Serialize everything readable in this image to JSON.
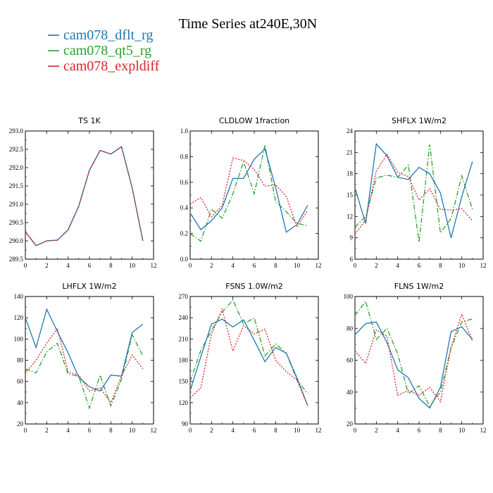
{
  "title": "Time Series at240E,30N",
  "legend": [
    {
      "label": "cam078_dflt_rg",
      "color": "#1f77b4",
      "dash": "solid"
    },
    {
      "label": "cam078_qt5_rg",
      "color": "#2ca02c",
      "dash": "dashdot"
    },
    {
      "label": "cam078_expldiff",
      "color": "#d62728",
      "dash": "dotted"
    }
  ],
  "chart_data": [
    {
      "type": "line",
      "title": "TS   1K",
      "xlim": [
        0,
        12
      ],
      "xticks": [
        0,
        2,
        4,
        6,
        8,
        10,
        12
      ],
      "ylim": [
        289.5,
        293.0
      ],
      "yticks": [
        "289.5",
        "290.0",
        "290.5",
        "291.0",
        "291.5",
        "292.0",
        "292.5",
        "293.0"
      ],
      "x": [
        0,
        1,
        2,
        3,
        4,
        5,
        6,
        7,
        8,
        9,
        10,
        11
      ],
      "series": [
        {
          "name": "cam078_dflt_rg",
          "values": [
            290.25,
            289.87,
            290.0,
            290.02,
            290.3,
            290.95,
            291.93,
            292.47,
            292.37,
            292.57,
            291.45,
            290.0
          ]
        },
        {
          "name": "cam078_qt5_rg",
          "values": [
            290.25,
            289.87,
            290.0,
            290.02,
            290.3,
            290.95,
            291.93,
            292.47,
            292.37,
            292.57,
            291.45,
            290.0
          ]
        },
        {
          "name": "cam078_expldiff",
          "values": [
            290.25,
            289.87,
            290.0,
            290.02,
            290.3,
            290.95,
            291.93,
            292.47,
            292.37,
            292.57,
            291.45,
            290.0
          ]
        }
      ]
    },
    {
      "type": "line",
      "title": "CLDLOW   1fraction",
      "xlim": [
        0,
        12
      ],
      "xticks": [
        0,
        2,
        4,
        6,
        8,
        10,
        12
      ],
      "ylim": [
        0.0,
        1.0
      ],
      "yticks": [
        "0.0",
        "0.2",
        "0.4",
        "0.6",
        "0.8",
        "1.0"
      ],
      "x": [
        0,
        1,
        2,
        3,
        4,
        5,
        6,
        7,
        8,
        9,
        10,
        11
      ],
      "series": [
        {
          "name": "cam078_dflt_rg",
          "values": [
            0.36,
            0.23,
            0.3,
            0.4,
            0.63,
            0.63,
            0.78,
            0.86,
            0.56,
            0.21,
            0.27,
            0.42
          ]
        },
        {
          "name": "cam078_qt5_rg",
          "values": [
            0.2,
            0.14,
            0.39,
            0.32,
            0.51,
            0.76,
            0.51,
            0.89,
            0.45,
            0.37,
            0.28,
            0.26
          ]
        },
        {
          "name": "cam078_expldiff",
          "values": [
            0.43,
            0.48,
            0.33,
            0.42,
            0.79,
            0.77,
            0.7,
            0.57,
            0.58,
            0.49,
            0.25,
            0.38
          ]
        }
      ]
    },
    {
      "type": "line",
      "title": "SHFLX   1W/m2",
      "xlim": [
        0,
        12
      ],
      "xticks": [
        0,
        2,
        4,
        6,
        8,
        10,
        12
      ],
      "ylim": [
        6,
        24
      ],
      "yticks": [
        "6",
        "9",
        "12",
        "15",
        "18",
        "21",
        "24"
      ],
      "x": [
        0,
        1,
        2,
        3,
        4,
        5,
        6,
        7,
        8,
        9,
        10,
        11
      ],
      "series": [
        {
          "name": "cam078_dflt_rg",
          "values": [
            16.0,
            11.0,
            22.2,
            20.5,
            17.5,
            17.2,
            18.9,
            18.0,
            15.3,
            9.0,
            14.8,
            19.7
          ]
        },
        {
          "name": "cam078_qt5_rg",
          "values": [
            10.5,
            12.0,
            17.4,
            17.8,
            17.5,
            19.2,
            8.4,
            22.1,
            9.7,
            11.7,
            17.7,
            13.0
          ]
        },
        {
          "name": "cam078_expldiff",
          "values": [
            9.5,
            11.5,
            18.4,
            20.7,
            18.2,
            17.6,
            14.3,
            15.9,
            13.0,
            12.9,
            13.1,
            11.4
          ]
        }
      ]
    },
    {
      "type": "line",
      "title": "LHFLX   1W/m2",
      "xlim": [
        0,
        12
      ],
      "xticks": [
        0,
        2,
        4,
        6,
        8,
        10,
        12
      ],
      "ylim": [
        20,
        140
      ],
      "yticks": [
        "20",
        "40",
        "60",
        "80",
        "100",
        "120",
        "140"
      ],
      "x": [
        0,
        1,
        2,
        3,
        4,
        5,
        6,
        7,
        8,
        9,
        10,
        11
      ],
      "series": [
        {
          "name": "cam078_dflt_rg",
          "values": [
            120,
            92,
            128,
            107,
            87,
            64,
            55,
            51,
            66,
            65,
            106,
            114
          ]
        },
        {
          "name": "cam078_qt5_rg",
          "values": [
            72,
            68,
            88,
            96,
            67,
            65,
            35,
            66,
            37,
            62,
            104,
            84
          ]
        },
        {
          "name": "cam078_expldiff",
          "values": [
            68,
            80,
            96,
            110,
            69,
            66,
            51,
            54,
            40,
            65,
            85,
            72
          ]
        }
      ]
    },
    {
      "type": "line",
      "title": "FSNS   1.0W/m2",
      "xlim": [
        0,
        12
      ],
      "xticks": [
        0,
        2,
        4,
        6,
        8,
        10,
        12
      ],
      "ylim": [
        90,
        270
      ],
      "yticks": [
        "90",
        "120",
        "150",
        "180",
        "210",
        "240",
        "270"
      ],
      "x": [
        0,
        1,
        2,
        3,
        4,
        5,
        6,
        7,
        8,
        9,
        10,
        11
      ],
      "series": [
        {
          "name": "cam078_dflt_rg",
          "values": [
            137,
            185,
            231,
            238,
            227,
            237,
            208,
            178,
            198,
            190,
            155,
            116
          ]
        },
        {
          "name": "cam078_qt5_rg",
          "values": [
            150,
            194,
            222,
            248,
            265,
            231,
            240,
            186,
            203,
            190,
            152,
            133
          ]
        },
        {
          "name": "cam078_expldiff",
          "values": [
            127,
            141,
            217,
            252,
            193,
            229,
            217,
            224,
            180,
            164,
            152,
            116
          ]
        }
      ]
    },
    {
      "type": "line",
      "title": "FLNS   1W/m2",
      "xlim": [
        0,
        12
      ],
      "xticks": [
        0,
        2,
        4,
        6,
        8,
        10,
        12
      ],
      "ylim": [
        20,
        100
      ],
      "yticks": [
        "20",
        "40",
        "60",
        "80",
        "100"
      ],
      "x": [
        0,
        1,
        2,
        3,
        4,
        5,
        6,
        7,
        8,
        9,
        10,
        11
      ],
      "series": [
        {
          "name": "cam078_dflt_rg",
          "values": [
            76,
            83,
            84,
            71,
            54,
            49,
            36,
            30,
            43,
            78,
            81,
            73
          ]
        },
        {
          "name": "cam078_qt5_rg",
          "values": [
            88,
            97,
            73,
            80,
            64,
            39,
            44,
            31,
            40,
            68,
            84,
            86
          ]
        },
        {
          "name": "cam078_expldiff",
          "values": [
            66,
            58,
            79,
            75,
            38,
            41,
            38,
            43,
            34,
            68,
            89,
            72
          ]
        }
      ]
    }
  ]
}
